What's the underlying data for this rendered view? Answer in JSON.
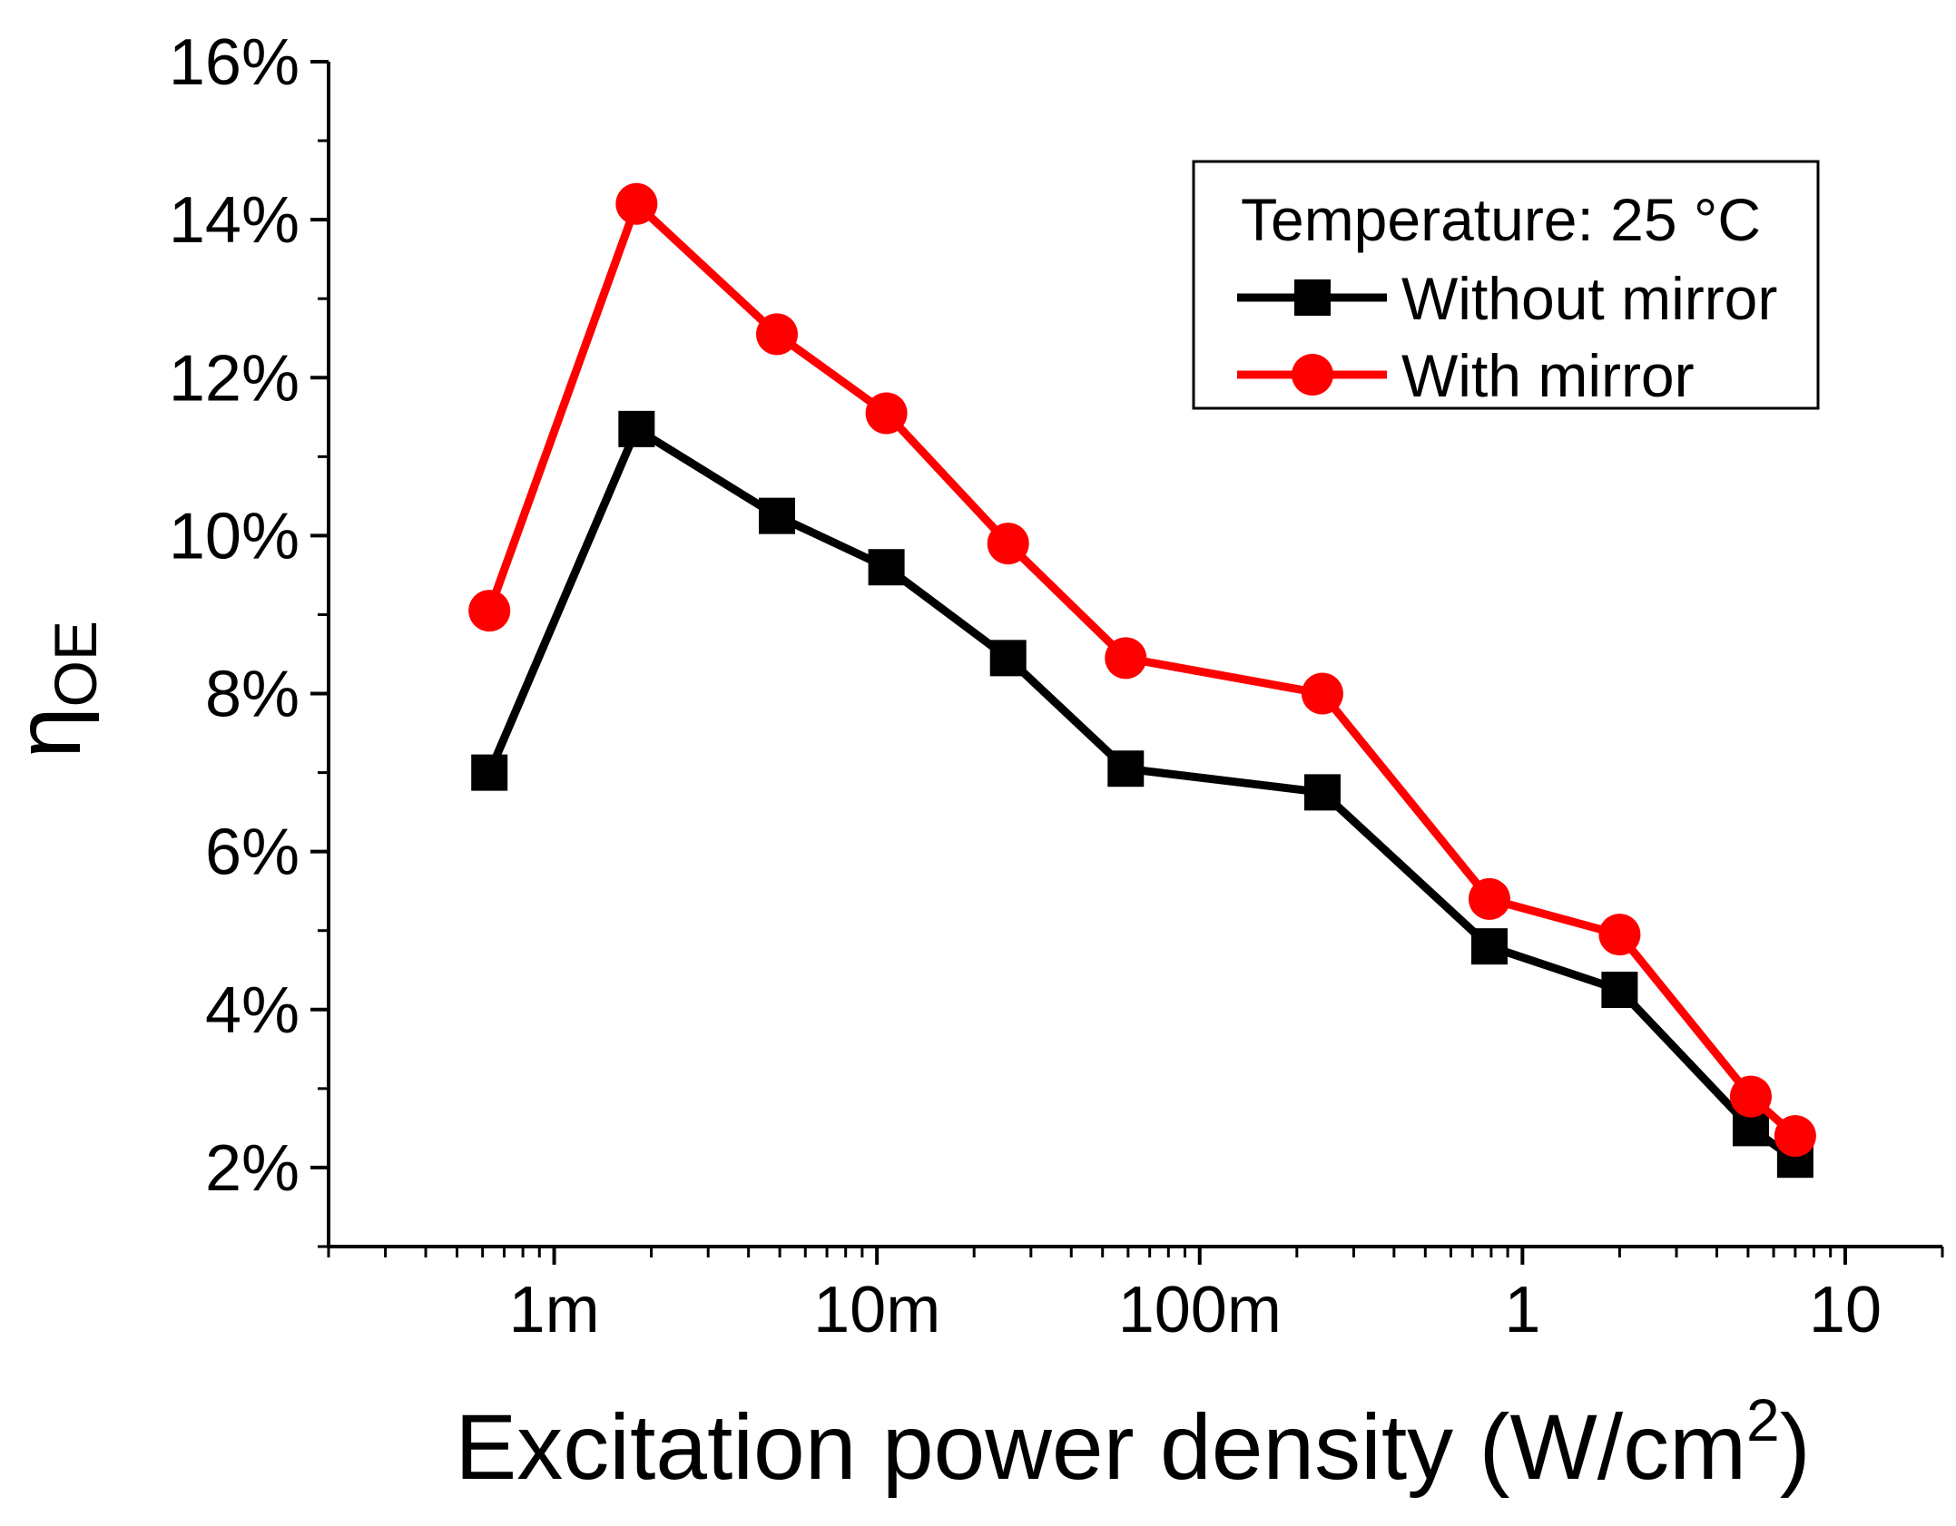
{
  "chart_data": {
    "type": "line",
    "title": "",
    "xlabel": "Excitation power density (W/cm",
    "xlabel_sup": "2",
    "xlabel_close": ")",
    "ylabel": "η",
    "ylabel_sub": "OE",
    "x_scale": "log",
    "xlim": [
      0.0002,
      20
    ],
    "ylim": [
      1.0,
      16.0
    ],
    "x_ticks": [
      {
        "value": 0.001,
        "label": "1m"
      },
      {
        "value": 0.01,
        "label": "10m"
      },
      {
        "value": 0.1,
        "label": "100m"
      },
      {
        "value": 1,
        "label": "1"
      },
      {
        "value": 10,
        "label": "10"
      }
    ],
    "y_ticks": [
      {
        "value": 2,
        "label": "2%"
      },
      {
        "value": 4,
        "label": "4%"
      },
      {
        "value": 6,
        "label": "6%"
      },
      {
        "value": 8,
        "label": "8%"
      },
      {
        "value": 10,
        "label": "10%"
      },
      {
        "value": 12,
        "label": "12%"
      },
      {
        "value": 14,
        "label": "14%"
      },
      {
        "value": 16,
        "label": "16%"
      }
    ],
    "legend": {
      "placement": "top-right",
      "title": "Temperature: 25 °C"
    },
    "series": [
      {
        "name": "Without mirror",
        "color": "#000000",
        "marker": "square",
        "x": [
          0.00063,
          0.0018,
          0.0049,
          0.0107,
          0.0255,
          0.059,
          0.24,
          0.79,
          2.0,
          5.1,
          7.0
        ],
        "y": [
          7.0,
          11.35,
          10.25,
          9.6,
          8.45,
          7.05,
          6.75,
          4.8,
          4.25,
          2.5,
          2.1
        ]
      },
      {
        "name": "With mirror",
        "color": "#ff0000",
        "marker": "circle",
        "x": [
          0.00063,
          0.0018,
          0.0049,
          0.0107,
          0.0255,
          0.059,
          0.24,
          0.79,
          2.0,
          5.1,
          7.0
        ],
        "y": [
          9.05,
          14.2,
          12.55,
          11.55,
          9.9,
          8.45,
          8.0,
          5.4,
          4.95,
          2.9,
          2.4
        ]
      }
    ]
  }
}
